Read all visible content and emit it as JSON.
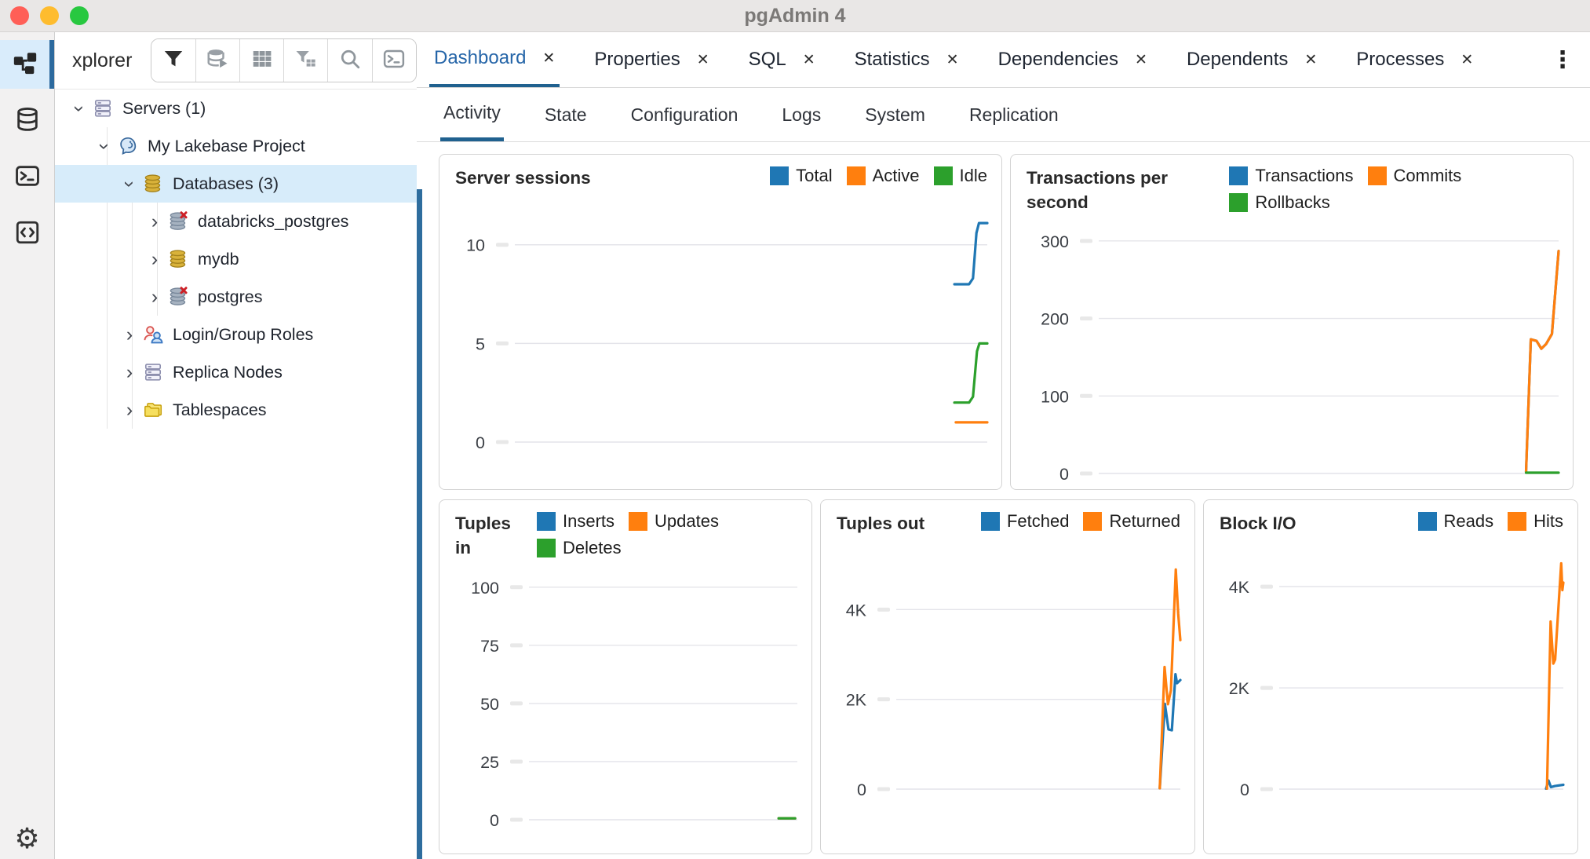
{
  "titlebar": {
    "title": "pgAdmin 4"
  },
  "glyphs": {
    "close": "✕",
    "overflow": "⋮",
    "chevron": "›",
    "gear": "⚙"
  },
  "rail": {
    "items": [
      {
        "name": "object-explorer",
        "active": true
      },
      {
        "name": "database",
        "active": false
      },
      {
        "name": "terminal",
        "active": false
      },
      {
        "name": "panel-layout",
        "active": false
      }
    ],
    "settings": {
      "name": "settings"
    }
  },
  "explorer": {
    "header_label": "xplorer",
    "toolbar_icons": [
      "filter",
      "database-play",
      "table",
      "filter-table",
      "search",
      "terminal"
    ],
    "tree": [
      {
        "label": "Servers (1)",
        "icon": "server-group",
        "level": 0,
        "expanded": true,
        "selected": false
      },
      {
        "label": "My Lakebase Project",
        "icon": "postgres-elephant",
        "level": 1,
        "expanded": true,
        "selected": false
      },
      {
        "label": "Databases (3)",
        "icon": "database-gold",
        "level": 2,
        "expanded": true,
        "selected": true
      },
      {
        "label": "databricks_postgres",
        "icon": "database-disconnected",
        "level": 3,
        "expanded": false,
        "selected": false
      },
      {
        "label": "mydb",
        "icon": "database-gold",
        "level": 3,
        "expanded": false,
        "selected": false
      },
      {
        "label": "postgres",
        "icon": "database-disconnected",
        "level": 3,
        "expanded": false,
        "selected": false
      },
      {
        "label": "Login/Group Roles",
        "icon": "roles",
        "level": 2,
        "expanded": false,
        "selected": false
      },
      {
        "label": "Replica Nodes",
        "icon": "server-group",
        "level": 2,
        "expanded": false,
        "selected": false
      },
      {
        "label": "Tablespaces",
        "icon": "folder",
        "level": 2,
        "expanded": false,
        "selected": false
      }
    ]
  },
  "tabbar": {
    "tabs": [
      {
        "label": "Dashboard",
        "active": true
      },
      {
        "label": "Properties",
        "active": false
      },
      {
        "label": "SQL",
        "active": false
      },
      {
        "label": "Statistics",
        "active": false
      },
      {
        "label": "Dependencies",
        "active": false
      },
      {
        "label": "Dependents",
        "active": false
      },
      {
        "label": "Processes",
        "active": false
      }
    ]
  },
  "subtabs": [
    {
      "label": "Activity",
      "active": true
    },
    {
      "label": "State",
      "active": false
    },
    {
      "label": "Configuration",
      "active": false
    },
    {
      "label": "Logs",
      "active": false
    },
    {
      "label": "System",
      "active": false
    },
    {
      "label": "Replication",
      "active": false
    }
  ],
  "colors": {
    "blue": "#1f77b4",
    "orange": "#ff7f0e",
    "green": "#2ca02c",
    "accent": "#2565a8",
    "underline": "#20618f",
    "splitter": "#2e6d9e"
  },
  "chart_data": [
    {
      "id": "sessions",
      "type": "line",
      "title": "Server sessions",
      "xlabel": "",
      "ylabel": "",
      "grid": true,
      "legend_position": "top-right",
      "x_encoding": "percent_of_x_axis",
      "ylim": [
        0,
        11.9
      ],
      "yticks": [
        {
          "v": 0,
          "label": "0"
        },
        {
          "v": 5,
          "label": "5"
        },
        {
          "v": 10,
          "label": "10"
        }
      ],
      "series": [
        {
          "name": "Total",
          "color": "#1f77b4",
          "points": [
            [
              93.3,
              8
            ],
            [
              96.3,
              8
            ],
            [
              97.1,
              8.3
            ],
            [
              97.8,
              10.6
            ],
            [
              98.3,
              11.1
            ],
            [
              100,
              11.1
            ]
          ]
        },
        {
          "name": "Active",
          "color": "#ff7f0e",
          "points": [
            [
              93.6,
              1
            ],
            [
              100,
              1
            ]
          ]
        },
        {
          "name": "Idle",
          "color": "#2ca02c",
          "points": [
            [
              93.3,
              2
            ],
            [
              96.3,
              2
            ],
            [
              97.1,
              2.3
            ],
            [
              97.9,
              4.6
            ],
            [
              98.4,
              5
            ],
            [
              100,
              5
            ]
          ]
        }
      ]
    },
    {
      "id": "tps",
      "type": "line",
      "title": "Transactions per second",
      "xlabel": "",
      "ylabel": "",
      "grid": true,
      "legend_position": "top-right",
      "x_encoding": "percent_of_x_axis",
      "ylim": [
        0,
        312
      ],
      "yticks": [
        {
          "v": 0,
          "label": "0"
        },
        {
          "v": 100,
          "label": "100"
        },
        {
          "v": 200,
          "label": "200"
        },
        {
          "v": 300,
          "label": "300"
        }
      ],
      "series": [
        {
          "name": "Transactions",
          "color": "#1f77b4",
          "points": [
            [
              93.2,
              2
            ],
            [
              94.2,
              173
            ],
            [
              95.4,
              171
            ],
            [
              96.4,
              161
            ],
            [
              97.4,
              167
            ],
            [
              98.6,
              180
            ],
            [
              100,
              287
            ]
          ]
        },
        {
          "name": "Commits",
          "color": "#ff7f0e",
          "points": [
            [
              93.2,
              2
            ],
            [
              94.2,
              173
            ],
            [
              95.4,
              171
            ],
            [
              96.4,
              161
            ],
            [
              97.4,
              167
            ],
            [
              98.6,
              180
            ],
            [
              100,
              287
            ]
          ]
        },
        {
          "name": "Rollbacks",
          "color": "#2ca02c",
          "points": [
            [
              93.2,
              1
            ],
            [
              100,
              1
            ]
          ]
        }
      ]
    },
    {
      "id": "tuples-in",
      "type": "line",
      "title": "Tuples in",
      "xlabel": "",
      "ylabel": "",
      "grid": true,
      "legend_position": "top-right",
      "x_encoding": "percent_of_x_axis",
      "ylim": [
        0,
        105
      ],
      "yticks": [
        {
          "v": 0,
          "label": "0"
        },
        {
          "v": 25,
          "label": "25"
        },
        {
          "v": 50,
          "label": "50"
        },
        {
          "v": 75,
          "label": "75"
        },
        {
          "v": 100,
          "label": "100"
        }
      ],
      "series": [
        {
          "name": "Inserts",
          "color": "#1f77b4",
          "points": [
            [
              93.5,
              0.6
            ],
            [
              99.2,
              0.6
            ]
          ]
        },
        {
          "name": "Updates",
          "color": "#ff7f0e",
          "points": [
            [
              93.5,
              0.6
            ],
            [
              99.2,
              0.6
            ]
          ]
        },
        {
          "name": "Deletes",
          "color": "#2ca02c",
          "points": [
            [
              93.5,
              0.6
            ],
            [
              99.2,
              0.6
            ]
          ]
        }
      ]
    },
    {
      "id": "tuples-out",
      "type": "line",
      "title": "Tuples out",
      "xlabel": "",
      "ylabel": "",
      "grid": true,
      "legend_position": "top-right",
      "x_encoding": "percent_of_x_axis",
      "ylim": [
        0,
        5300
      ],
      "yticks": [
        {
          "v": 0,
          "label": "0"
        },
        {
          "v": 2000,
          "label": "2K"
        },
        {
          "v": 4000,
          "label": "4K"
        }
      ],
      "series": [
        {
          "name": "Fetched",
          "color": "#1f77b4",
          "points": [
            [
              93.2,
              20
            ],
            [
              94.9,
              1900
            ],
            [
              96.1,
              1330
            ],
            [
              97.2,
              1310
            ],
            [
              98.4,
              2560
            ],
            [
              98.9,
              2360
            ],
            [
              100,
              2430
            ]
          ]
        },
        {
          "name": "Returned",
          "color": "#ff7f0e",
          "points": [
            [
              93.2,
              20
            ],
            [
              94.8,
              2720
            ],
            [
              95.9,
              1890
            ],
            [
              96.9,
              2200
            ],
            [
              98.5,
              4890
            ],
            [
              99.3,
              3900
            ],
            [
              100,
              3320
            ]
          ]
        }
      ]
    },
    {
      "id": "blockio",
      "type": "line",
      "title": "Block I/O",
      "xlabel": "",
      "ylabel": "",
      "grid": true,
      "legend_position": "top-right",
      "x_encoding": "percent_of_x_axis",
      "ylim": [
        0,
        4700
      ],
      "yticks": [
        {
          "v": 0,
          "label": "0"
        },
        {
          "v": 2000,
          "label": "2K"
        },
        {
          "v": 4000,
          "label": "4K"
        }
      ],
      "series": [
        {
          "name": "Reads",
          "color": "#1f77b4",
          "points": [
            [
              94.3,
              10
            ],
            [
              95.1,
              170
            ],
            [
              95.9,
              40
            ],
            [
              97.2,
              60
            ],
            [
              100,
              85
            ]
          ]
        },
        {
          "name": "Hits",
          "color": "#ff7f0e",
          "points": [
            [
              94.6,
              10
            ],
            [
              95.8,
              3310
            ],
            [
              96.7,
              2480
            ],
            [
              97.3,
              2560
            ],
            [
              99.3,
              4460
            ],
            [
              99.7,
              3930
            ],
            [
              100,
              4080
            ]
          ]
        }
      ]
    }
  ]
}
